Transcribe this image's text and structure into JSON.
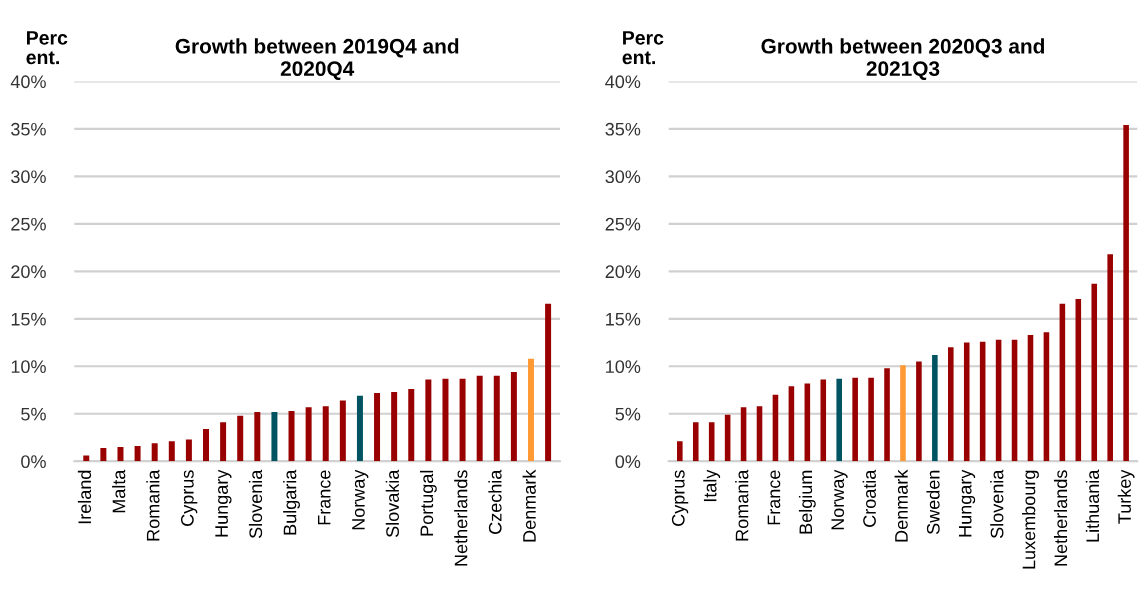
{
  "chart_data": [
    {
      "type": "bar",
      "title": "Growth between 2019Q4 and\n2020Q4",
      "ylabel": "Perc\nent.",
      "categories": [
        "Ireland",
        null,
        "Malta",
        null,
        "Romania",
        null,
        "Cyprus",
        null,
        "Hungary",
        null,
        "Slovenia",
        null,
        "Bulgaria",
        null,
        "France",
        null,
        "Norway",
        null,
        "Slovakia",
        null,
        "Portugal",
        null,
        "Netherlands",
        null,
        "Czechia",
        null,
        "Denmark",
        null
      ],
      "values": [
        0.6,
        1.4,
        1.5,
        1.6,
        1.9,
        2.1,
        2.3,
        3.4,
        4.1,
        4.8,
        5.2,
        5.2,
        5.3,
        5.7,
        5.8,
        6.4,
        6.9,
        7.2,
        7.3,
        7.6,
        8.6,
        8.7,
        8.7,
        9.0,
        9.0,
        9.4,
        10.8,
        16.6
      ],
      "colors": [
        "#990000",
        "#990000",
        "#990000",
        "#990000",
        "#990000",
        "#990000",
        "#990000",
        "#990000",
        "#990000",
        "#990000",
        "#990000",
        "#005461",
        "#990000",
        "#990000",
        "#990000",
        "#990000",
        "#005461",
        "#990000",
        "#990000",
        "#990000",
        "#990000",
        "#990000",
        "#990000",
        "#990000",
        "#990000",
        "#990000",
        "#ff9933",
        "#990000"
      ],
      "ylim": [
        0,
        40
      ],
      "yticks": [
        {
          "value": 0,
          "label": "0%"
        },
        {
          "value": 5,
          "label": "5%"
        },
        {
          "value": 10,
          "label": "10%"
        },
        {
          "value": 15,
          "label": "15%"
        },
        {
          "value": 20,
          "label": "20%"
        },
        {
          "value": 25,
          "label": "25%"
        },
        {
          "value": 30,
          "label": "30%"
        },
        {
          "value": 35,
          "label": "35%"
        },
        {
          "value": 40,
          "label": "40%"
        }
      ],
      "grid": "y",
      "legend": false
    },
    {
      "type": "bar",
      "title": "Growth between 2020Q3 and\n2021Q3",
      "ylabel": "Perc\nent.",
      "categories": [
        "Cyprus",
        null,
        "Italy",
        null,
        "Romania",
        null,
        "France",
        null,
        "Belgium",
        null,
        "Norway",
        null,
        "Croatia",
        null,
        "Denmark",
        null,
        "Sweden",
        null,
        "Hungary",
        null,
        "Slovenia",
        null,
        "Luxembourg",
        null,
        "Netherlands",
        null,
        "Lithuania",
        null,
        "Turkey"
      ],
      "values": [
        2.1,
        4.1,
        4.1,
        4.9,
        5.7,
        5.8,
        7.0,
        7.9,
        8.2,
        8.6,
        8.7,
        8.8,
        8.8,
        9.8,
        10.1,
        10.5,
        11.2,
        12.0,
        12.5,
        12.6,
        12.8,
        12.8,
        13.3,
        13.6,
        16.6,
        17.1,
        18.7,
        21.8,
        35.4
      ],
      "colors": [
        "#990000",
        "#990000",
        "#990000",
        "#990000",
        "#990000",
        "#990000",
        "#990000",
        "#990000",
        "#990000",
        "#990000",
        "#005461",
        "#990000",
        "#990000",
        "#990000",
        "#ff9933",
        "#990000",
        "#005461",
        "#990000",
        "#990000",
        "#990000",
        "#990000",
        "#990000",
        "#990000",
        "#990000",
        "#990000",
        "#990000",
        "#990000",
        "#990000",
        "#990000"
      ],
      "ylim": [
        0,
        40
      ],
      "yticks": [
        {
          "value": 0,
          "label": "0%"
        },
        {
          "value": 5,
          "label": "5%"
        },
        {
          "value": 10,
          "label": "10%"
        },
        {
          "value": 15,
          "label": "15%"
        },
        {
          "value": 20,
          "label": "20%"
        },
        {
          "value": 25,
          "label": "25%"
        },
        {
          "value": 30,
          "label": "30%"
        },
        {
          "value": 35,
          "label": "35%"
        },
        {
          "value": 40,
          "label": "40%"
        }
      ],
      "grid": "y",
      "legend": false
    }
  ]
}
